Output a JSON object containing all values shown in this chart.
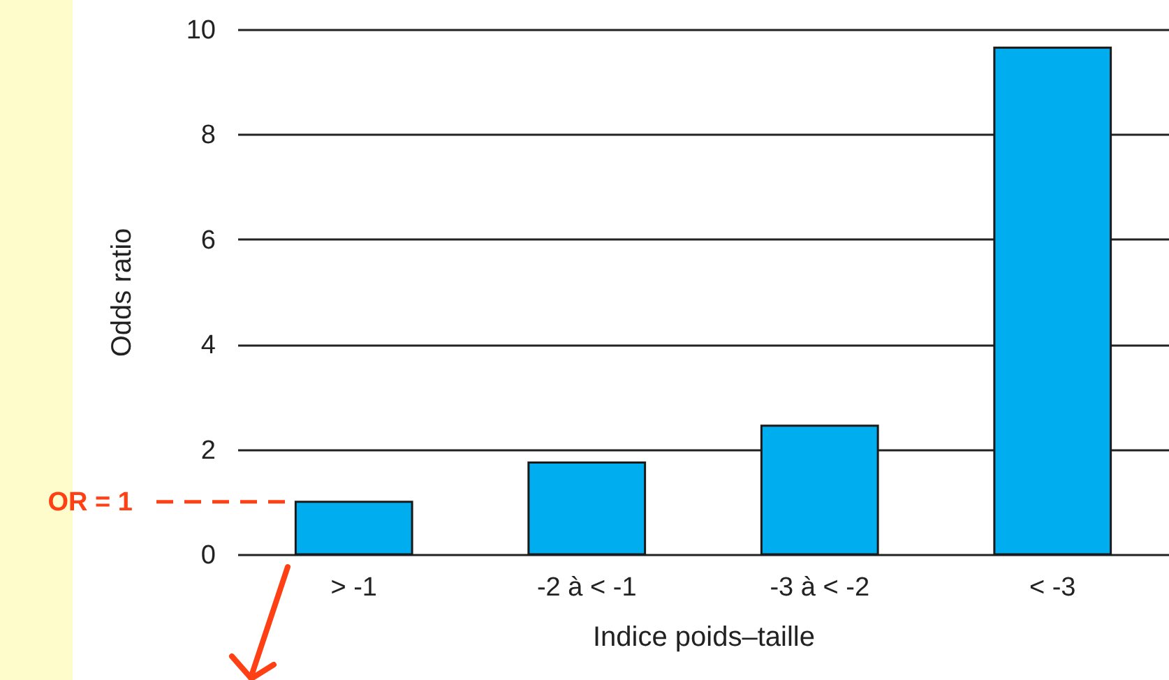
{
  "chart_data": {
    "type": "bar",
    "xlabel": "Indice poids–taille",
    "ylabel": "Odds ratio",
    "categories": [
      "> -1",
      "-2 à < -1",
      "-3 à < -2",
      "< -3"
    ],
    "values": [
      1,
      1.75,
      2.45,
      9.65
    ],
    "color": "#00aeef",
    "ylim": [
      0,
      10
    ],
    "yticks": [
      0,
      2,
      4,
      6,
      8,
      10
    ],
    "grid": "y",
    "ref_lines": [
      {
        "axis": "y",
        "value": 1,
        "label": "OR = 1",
        "color": "#ff4014",
        "line_style": "dashed"
      }
    ]
  }
}
